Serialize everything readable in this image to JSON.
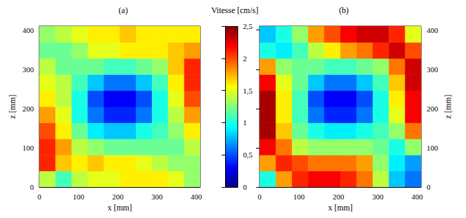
{
  "chart_data": [
    {
      "type": "heatmap",
      "title": "(a)",
      "xlabel": "x [mm]",
      "ylabel": "z [mm]",
      "xlim": [
        0,
        410
      ],
      "ylim": [
        0,
        410
      ],
      "xticks": [
        0,
        100,
        200,
        300,
        400
      ],
      "yticks": [
        0,
        100,
        200,
        300,
        400
      ],
      "x_edges": [
        0,
        41,
        82,
        123,
        164,
        205,
        246,
        287,
        328,
        369,
        410
      ],
      "z_edges": [
        0,
        41,
        82,
        123,
        164,
        205,
        246,
        287,
        328,
        369,
        410
      ],
      "cells": [
        [
          1.4,
          1.1,
          1.4,
          1.5,
          1.5,
          1.6,
          1.6,
          1.6,
          1.5,
          1.3
        ],
        [
          2.1,
          1.7,
          1.6,
          1.7,
          1.6,
          1.6,
          1.5,
          1.4,
          1.3,
          1.3
        ],
        [
          2.1,
          1.8,
          1.4,
          1.3,
          1.2,
          1.2,
          1.2,
          1.2,
          1.2,
          1.4
        ],
        [
          2.0,
          1.6,
          1.2,
          0.9,
          0.8,
          0.8,
          1.0,
          1.1,
          1.3,
          1.6
        ],
        [
          1.8,
          1.5,
          1.0,
          0.6,
          0.4,
          0.4,
          0.6,
          1.0,
          1.4,
          1.8
        ],
        [
          1.6,
          1.4,
          1.0,
          0.5,
          0.3,
          0.3,
          0.5,
          1.0,
          1.5,
          2.0
        ],
        [
          1.5,
          1.4,
          1.1,
          0.8,
          0.6,
          0.6,
          0.8,
          1.1,
          1.6,
          2.1
        ],
        [
          1.4,
          1.2,
          1.2,
          1.2,
          1.1,
          1.1,
          1.2,
          1.3,
          1.7,
          2.1
        ],
        [
          1.2,
          1.2,
          1.3,
          1.5,
          1.5,
          1.6,
          1.6,
          1.6,
          1.7,
          1.8
        ],
        [
          1.3,
          1.4,
          1.5,
          1.6,
          1.6,
          1.7,
          1.6,
          1.6,
          1.6,
          1.6
        ]
      ]
    },
    {
      "type": "heatmap",
      "title": "(b)",
      "xlabel": "x [mm]",
      "ylabel": "z [mm]",
      "xlim": [
        0,
        410
      ],
      "ylim": [
        0,
        410
      ],
      "xticks": [
        0,
        100,
        200,
        300,
        400
      ],
      "yticks": [
        0,
        100,
        200,
        300,
        400
      ],
      "x_edges": [
        0,
        41,
        82,
        123,
        164,
        205,
        246,
        287,
        328,
        369,
        410
      ],
      "z_edges": [
        0,
        41,
        82,
        123,
        164,
        205,
        246,
        287,
        328,
        369,
        410
      ],
      "cells": [
        [
          1.0,
          1.8,
          2.1,
          2.2,
          2.2,
          2.1,
          1.9,
          1.4,
          0.8,
          0.6
        ],
        [
          1.8,
          2.1,
          2.0,
          1.9,
          1.9,
          1.9,
          1.8,
          1.3,
          0.9,
          0.7
        ],
        [
          2.2,
          1.9,
          1.4,
          1.3,
          1.3,
          1.3,
          1.3,
          1.2,
          1.0,
          1.3
        ],
        [
          2.4,
          1.7,
          1.2,
          1.0,
          0.9,
          0.9,
          1.0,
          1.1,
          1.3,
          1.9
        ],
        [
          2.4,
          1.6,
          1.1,
          0.6,
          0.4,
          0.4,
          0.6,
          1.0,
          1.5,
          2.2
        ],
        [
          2.4,
          1.6,
          1.1,
          0.5,
          0.3,
          0.3,
          0.5,
          1.0,
          1.6,
          2.2
        ],
        [
          2.2,
          1.5,
          1.2,
          0.8,
          0.6,
          0.6,
          0.8,
          1.1,
          1.7,
          2.3
        ],
        [
          1.8,
          1.3,
          1.2,
          1.2,
          1.1,
          1.1,
          1.2,
          1.3,
          1.9,
          2.3
        ],
        [
          1.0,
          0.9,
          1.1,
          1.4,
          1.6,
          1.8,
          1.9,
          2.1,
          2.3,
          2.0
        ],
        [
          0.8,
          1.0,
          1.3,
          1.8,
          2.0,
          2.2,
          2.3,
          2.3,
          2.1,
          1.5
        ]
      ]
    }
  ],
  "colorbar": {
    "title": "Vitesse [cm/s]",
    "lim": [
      0,
      2.5
    ],
    "ticks": [
      0,
      {
        "value": 0.5,
        "label": "0,5"
      },
      1,
      {
        "value": 1.5,
        "label": "1,5"
      },
      2,
      {
        "value": 2.5,
        "label": "2,5"
      }
    ]
  }
}
